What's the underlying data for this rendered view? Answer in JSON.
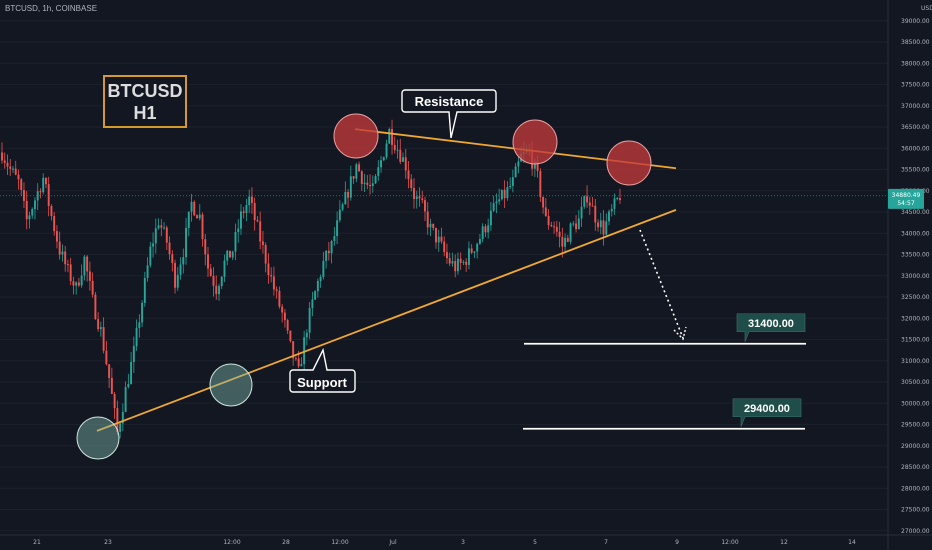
{
  "header": {
    "symbol_line": "BTCUSD, 1h, COINBASE"
  },
  "title_box": {
    "line1": "BTCUSD",
    "line2": "H1"
  },
  "chart_data": {
    "type": "candlestick",
    "currency_label": "USD",
    "ylim": [
      26900,
      39300
    ],
    "y_ticks": [
      27000,
      27500,
      28000,
      28500,
      29000,
      29500,
      30000,
      30500,
      31000,
      31500,
      32000,
      32500,
      33000,
      33500,
      34000,
      34500,
      35000,
      35500,
      36000,
      36500,
      37000,
      37500,
      38000,
      38500,
      39000
    ],
    "x_ticks": [
      "21",
      "23",
      "12:00",
      "28",
      "12:00",
      "Jul",
      "3",
      "5",
      "7",
      "9",
      "12:00",
      "12",
      "14"
    ],
    "close_series": [
      35900,
      35500,
      35200,
      34300,
      34800,
      35300,
      34400,
      33600,
      33100,
      32700,
      33400,
      32400,
      31700,
      30600,
      29300,
      30300,
      31200,
      32400,
      33600,
      34300,
      33800,
      32900,
      33600,
      34700,
      34400,
      33200,
      32700,
      33300,
      33600,
      34400,
      34800,
      34100,
      33400,
      32700,
      32100,
      31300,
      30700,
      31800,
      32600,
      33300,
      33700,
      34400,
      35000,
      35600,
      35200,
      35000,
      35700,
      36400,
      36000,
      35600,
      34900,
      34600,
      34100,
      33800,
      33400,
      33200,
      33300,
      33600,
      33900,
      34300,
      34700,
      34900,
      35200,
      35800,
      35900,
      35300,
      34300,
      34200,
      33700,
      34100,
      34300,
      34900,
      34400,
      34100,
      34500,
      34900
    ],
    "current_price": {
      "label": "34880.49",
      "countdown": "54:57",
      "value": 34880.49
    },
    "levels": [
      {
        "label": "31400.00",
        "value": 31400
      },
      {
        "label": "29400.00",
        "value": 29400
      }
    ],
    "resistance_line": {
      "label": "Resistance",
      "from_price": 36450,
      "to_price": 35530
    },
    "support_line": {
      "label": "Support",
      "from_price": 29350,
      "to_price": 34550
    }
  },
  "colors": {
    "up": "#26a69a",
    "down": "#ef5350",
    "trendline": "#f0a830",
    "resistance_circle": "#c0393b",
    "support_circle": "#7fb5aa",
    "tag_bg": "#1e4d4a",
    "price_tag": "#26a69a"
  }
}
